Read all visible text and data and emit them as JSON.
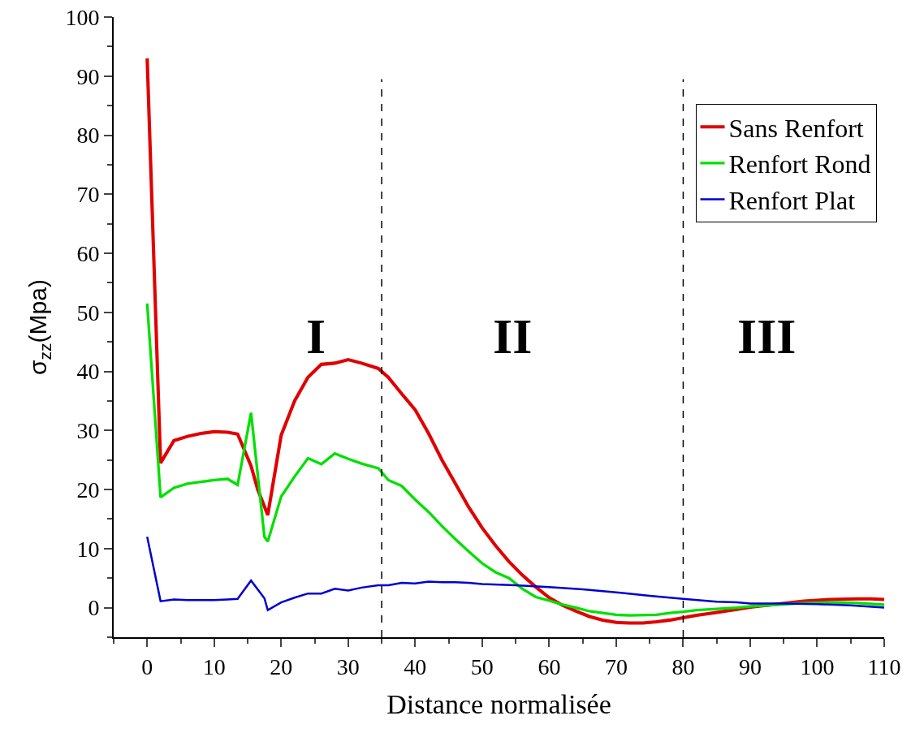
{
  "chart_data": {
    "type": "line",
    "xlabel": "Distance normalisée",
    "ylabel": "σ$_{zz}$(Mpa)",
    "xlim": [
      -5,
      110
    ],
    "xticks": [
      0,
      10,
      20,
      30,
      40,
      50,
      60,
      70,
      80,
      90,
      100,
      110
    ],
    "ylim": [
      -5,
      100
    ],
    "yticks": [
      0,
      10,
      20,
      30,
      40,
      50,
      60,
      70,
      80,
      90,
      100
    ],
    "grid": false,
    "legend": "top right",
    "line_style": "solid",
    "marker": "none",
    "ref_lines": [
      {
        "axis": "x",
        "value": 35,
        "color": "#000000",
        "line_style": "dashed"
      },
      {
        "axis": "x",
        "value": 80,
        "color": "#000000",
        "line_style": "dashed"
      }
    ],
    "annotations": [
      "I",
      "II",
      "III"
    ],
    "series": [
      {
        "name": "Sans Renfort",
        "color": "#e00000",
        "x": [
          0,
          2,
          4,
          6,
          8,
          10,
          12,
          13.5,
          15.5,
          16.5,
          18,
          20,
          22,
          24,
          26,
          28,
          30,
          32,
          34.5,
          36,
          38,
          40,
          42,
          44,
          46,
          48,
          50,
          52,
          54,
          56,
          58,
          60,
          62,
          64,
          66,
          68,
          70,
          72,
          74,
          76,
          78,
          80,
          82,
          85,
          88,
          90,
          94,
          98,
          102,
          106,
          108,
          110
        ],
        "values": [
          93,
          24.5,
          28.3,
          29,
          29.5,
          29.8,
          29.7,
          29.4,
          24,
          20,
          15.7,
          29.2,
          35,
          39,
          41.2,
          41.4,
          42,
          41.4,
          40.5,
          39,
          36.2,
          33.5,
          29.5,
          25,
          21,
          17,
          13.5,
          10.5,
          7.8,
          5.5,
          3.5,
          1.7,
          0.4,
          -0.6,
          -1.5,
          -2.1,
          -2.5,
          -2.6,
          -2.6,
          -2.4,
          -2.1,
          -1.7,
          -1.3,
          -0.8,
          -0.3,
          0.1,
          0.6,
          1.1,
          1.4,
          1.5,
          1.5,
          1.4
        ]
      },
      {
        "name": "Renfort Rond",
        "color": "#00e000",
        "x": [
          0,
          2,
          4,
          6,
          8,
          10,
          12,
          13.5,
          15.5,
          17.5,
          18,
          20,
          22,
          24,
          26,
          28,
          30,
          32,
          34.5,
          36,
          38,
          40,
          42,
          44,
          46,
          48,
          50,
          52,
          54,
          56,
          58,
          60,
          62,
          64,
          66,
          68,
          70,
          72,
          76,
          78,
          80,
          82,
          85,
          88,
          90,
          94,
          98,
          102,
          106,
          110
        ],
        "values": [
          51.5,
          18.7,
          20.3,
          21,
          21.3,
          21.6,
          21.8,
          20.8,
          33,
          12,
          11.2,
          18.8,
          22.2,
          25.3,
          24.3,
          26.1,
          25.2,
          24.4,
          23.6,
          21.6,
          20.6,
          18.3,
          16.2,
          13.8,
          11.6,
          9.5,
          7.5,
          6,
          5,
          3.2,
          1.8,
          1.2,
          0.5,
          0,
          -0.6,
          -0.9,
          -1.2,
          -1.3,
          -1.2,
          -0.9,
          -0.7,
          -0.4,
          -0.2,
          0,
          0.2,
          0.5,
          0.8,
          0.9,
          0.8,
          0.5
        ]
      },
      {
        "name": "Renfort Plat",
        "color": "#0000d0",
        "x": [
          0,
          2,
          4,
          6,
          8,
          10,
          12,
          13.5,
          15.5,
          17.5,
          18,
          20,
          22,
          24,
          26,
          28,
          30,
          32,
          34.5,
          36,
          38,
          40,
          42,
          44,
          46,
          48,
          50,
          55,
          60,
          65,
          70,
          75,
          80,
          85,
          88,
          90,
          95,
          100,
          105,
          110
        ],
        "values": [
          12,
          1.1,
          1.4,
          1.3,
          1.3,
          1.3,
          1.4,
          1.5,
          4.6,
          1.6,
          -0.4,
          0.9,
          1.7,
          2.4,
          2.4,
          3.2,
          2.9,
          3.4,
          3.8,
          3.8,
          4.2,
          4.1,
          4.4,
          4.3,
          4.3,
          4.2,
          4,
          3.8,
          3.5,
          3.1,
          2.6,
          2,
          1.5,
          1,
          0.9,
          0.7,
          0.7,
          0.6,
          0.4,
          0
        ]
      }
    ]
  }
}
